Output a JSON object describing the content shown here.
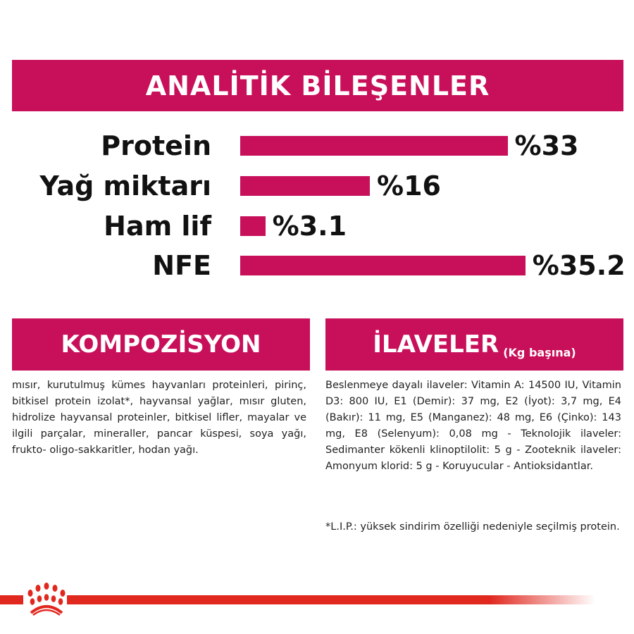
{
  "header": {
    "title": "ANALİTİK BİLEŞENLER"
  },
  "chart_data": {
    "type": "bar",
    "orientation": "horizontal",
    "categories": [
      "Protein",
      "Yağ miktarı",
      "Ham lif",
      "NFE"
    ],
    "values": [
      33,
      16,
      3.1,
      35.2
    ],
    "value_labels": [
      "%33",
      "%16",
      "%3.1",
      "%35.2"
    ],
    "color": "#c8105a",
    "grid": false
  },
  "composition": {
    "title": "KOMPOZİSYON",
    "text": "mısır, kurutulmuş kümes hayvanları proteinleri, pirinç, bitkisel protein izolat*, hayvansal yağlar, mısır gluten, hidrolize hayvansal proteinler, bitkisel lifler, mayalar ve ilgili parçalar, mineraller, pancar küspesi, soya yağı, frukto- oligo-sakkaritler, hodan yağı."
  },
  "additives": {
    "title": "İLAVELER",
    "subtitle": "(Kg başına)",
    "text": "Beslenmeye dayalı ilaveler: Vitamin A: 14500 IU, Vitamin D3: 800 IU, E1 (Demir): 37 mg, E2 (İyot): 3,7 mg, E4 (Bakır): 11 mg, E5 (Manganez): 48 mg, E6 (Çinko): 143 mg, E8 (Selenyum): 0,08 mg - Teknolojik ilaveler: Sedimanter kökenli klinoptilolit: 5 g - Zooteknik ilaveler: Amonyum klorid: 5 g - Koruyucular - Antioksidantlar.",
    "footnote": "*L.I.P.: yüksek sindirim özelliği nedeniyle seçilmiş protein."
  },
  "brand": {
    "color": "#e0281f",
    "logo": "crown-logo-icon"
  }
}
